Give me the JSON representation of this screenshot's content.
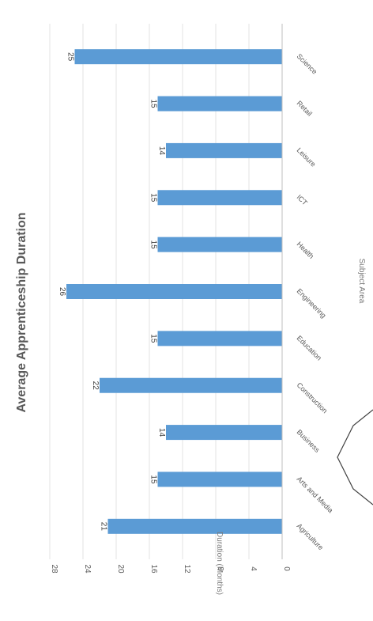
{
  "chart_data": {
    "type": "bar",
    "orientation": "horizontal",
    "title": "Average Apprenticeship Duration",
    "xlabel": "Subject Area",
    "ylabel": "Duration (Months)",
    "categories": [
      "Agriculture",
      "Arts and Media",
      "Business",
      "Construction",
      "Education",
      "Engineering",
      "Health",
      "ICT",
      "Leisure",
      "Retail",
      "Science"
    ],
    "values": [
      21,
      15,
      14,
      22,
      15,
      26,
      15,
      15,
      14,
      15,
      25
    ],
    "value_labels": [
      "21",
      "15",
      "14",
      "22",
      "15",
      "26",
      "15",
      "15",
      "14",
      "15",
      "25"
    ],
    "ylim": [
      0,
      28
    ],
    "ticks": [
      0,
      4,
      8,
      12,
      16,
      20,
      24,
      28
    ],
    "tick_labels": [
      "0",
      "4",
      "8",
      "12",
      "16",
      "20",
      "24",
      "28"
    ],
    "grid": true,
    "bar_color": "#5b9bd5"
  }
}
